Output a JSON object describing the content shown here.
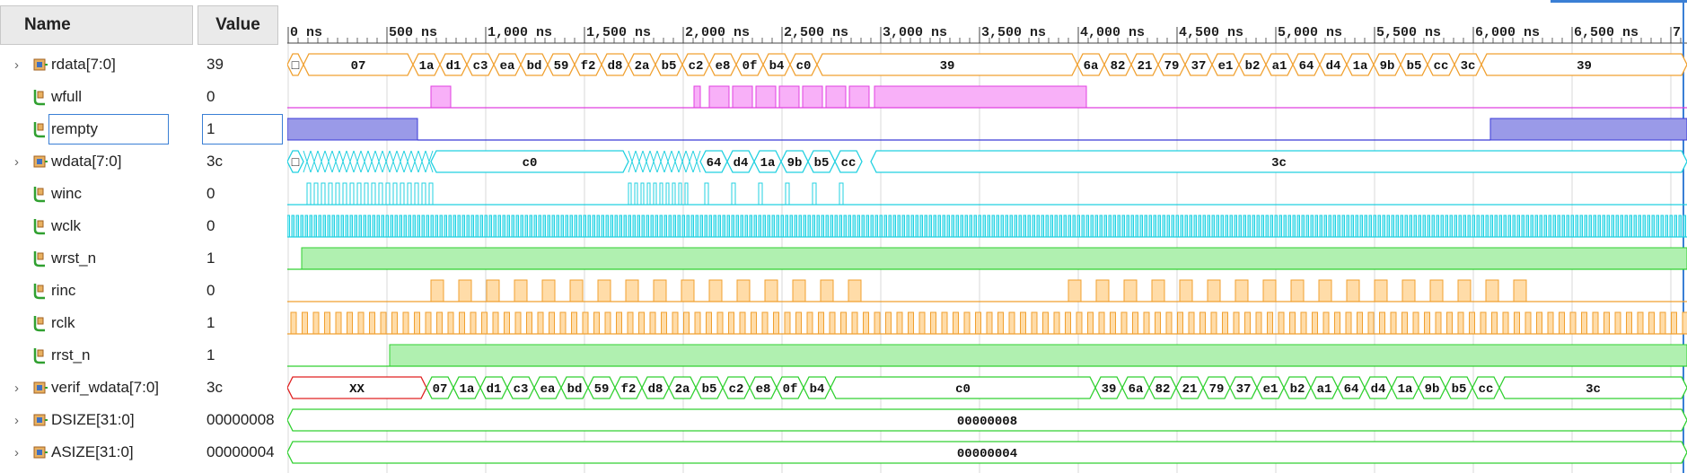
{
  "header": {
    "name_col": "Name",
    "value_col": "Value"
  },
  "timeline": {
    "unit": "ns",
    "ticks": [
      "0 ns",
      "500 ns",
      "1,000 ns",
      "1,500 ns",
      "2,000 ns",
      "2,500 ns",
      "3,000 ns",
      "3,500 ns",
      "4,000 ns",
      "4,500 ns",
      "5,000 ns",
      "5,500 ns",
      "6,000 ns",
      "6,500 ns",
      "7"
    ]
  },
  "signals": [
    {
      "name": "rdata[7:0]",
      "value": "39",
      "kind": "bus",
      "expandable": true,
      "color": "#f0a030"
    },
    {
      "name": "wfull",
      "value": "0",
      "kind": "bit",
      "expandable": false,
      "color": "#e040e0"
    },
    {
      "name": "rempty",
      "value": "1",
      "kind": "bit",
      "expandable": false,
      "color": "#3a3ad8",
      "selected": true
    },
    {
      "name": "wdata[7:0]",
      "value": "3c",
      "kind": "bus",
      "expandable": true,
      "color": "#20d0e0"
    },
    {
      "name": "winc",
      "value": "0",
      "kind": "bit",
      "expandable": false,
      "color": "#20d0e0"
    },
    {
      "name": "wclk",
      "value": "0",
      "kind": "bit",
      "expandable": false,
      "color": "#20d0e0"
    },
    {
      "name": "wrst_n",
      "value": "1",
      "kind": "bit",
      "expandable": false,
      "color": "#30d030"
    },
    {
      "name": "rinc",
      "value": "0",
      "kind": "bit",
      "expandable": false,
      "color": "#f0a030"
    },
    {
      "name": "rclk",
      "value": "1",
      "kind": "bit",
      "expandable": false,
      "color": "#f0a030"
    },
    {
      "name": "rrst_n",
      "value": "1",
      "kind": "bit",
      "expandable": false,
      "color": "#30d030"
    },
    {
      "name": "verif_wdata[7:0]",
      "value": "3c",
      "kind": "bus",
      "expandable": true,
      "color": "#30d030"
    },
    {
      "name": "DSIZE[31:0]",
      "value": "00000008",
      "kind": "bus",
      "expandable": true,
      "color": "#30d030"
    },
    {
      "name": "ASIZE[31:0]",
      "value": "00000004",
      "kind": "bus",
      "expandable": true,
      "color": "#30d030"
    }
  ],
  "waves": {
    "rdata": [
      [
        "□",
        0,
        18
      ],
      [
        "07",
        18,
        140
      ],
      [
        "1a",
        140,
        170
      ],
      [
        "d1",
        170,
        200
      ],
      [
        "c3",
        200,
        230
      ],
      [
        "ea",
        230,
        260
      ],
      [
        "bd",
        260,
        290
      ],
      [
        "59",
        290,
        320
      ],
      [
        "f2",
        320,
        350
      ],
      [
        "d8",
        350,
        380
      ],
      [
        "2a",
        380,
        410
      ],
      [
        "b5",
        410,
        440
      ],
      [
        "c2",
        440,
        470
      ],
      [
        "e8",
        470,
        500
      ],
      [
        "0f",
        500,
        530
      ],
      [
        "b4",
        530,
        560
      ],
      [
        "c0",
        560,
        590
      ],
      [
        "39",
        590,
        880
      ],
      [
        "6a",
        880,
        910
      ],
      [
        "82",
        910,
        940
      ],
      [
        "21",
        940,
        970
      ],
      [
        "79",
        970,
        1000
      ],
      [
        "37",
        1000,
        1030
      ],
      [
        "e1",
        1030,
        1060
      ],
      [
        "b2",
        1060,
        1090
      ],
      [
        "a1",
        1090,
        1120
      ],
      [
        "64",
        1120,
        1150
      ],
      [
        "d4",
        1150,
        1180
      ],
      [
        "1a",
        1180,
        1210
      ],
      [
        "9b",
        1210,
        1240
      ],
      [
        "b5",
        1240,
        1270
      ],
      [
        "cc",
        1270,
        1300
      ],
      [
        "3c",
        1300,
        1330
      ],
      [
        "39",
        1330,
        1559
      ]
    ],
    "wdata": [
      [
        "□",
        0,
        18
      ],
      [
        "c0",
        160,
        380
      ],
      [
        "64",
        460,
        490
      ],
      [
        "d4",
        490,
        520
      ],
      [
        "1a",
        520,
        550
      ],
      [
        "9b",
        550,
        580
      ],
      [
        "b5",
        580,
        610
      ],
      [
        "cc",
        610,
        640
      ],
      [
        "3c",
        650,
        1559
      ]
    ],
    "verif_wdata": [
      [
        "XX",
        0,
        155
      ],
      [
        "07",
        155,
        185
      ],
      [
        "1a",
        185,
        215
      ],
      [
        "d1",
        215,
        245
      ],
      [
        "c3",
        245,
        275
      ],
      [
        "ea",
        275,
        305
      ],
      [
        "bd",
        305,
        335
      ],
      [
        "59",
        335,
        365
      ],
      [
        "f2",
        365,
        395
      ],
      [
        "d8",
        395,
        425
      ],
      [
        "2a",
        425,
        455
      ],
      [
        "b5",
        455,
        485
      ],
      [
        "c2",
        485,
        515
      ],
      [
        "e8",
        515,
        545
      ],
      [
        "0f",
        545,
        575
      ],
      [
        "b4",
        575,
        605
      ],
      [
        "c0",
        605,
        900
      ],
      [
        "39",
        900,
        930
      ],
      [
        "6a",
        930,
        960
      ],
      [
        "82",
        960,
        990
      ],
      [
        "21",
        990,
        1020
      ],
      [
        "79",
        1020,
        1050
      ],
      [
        "37",
        1050,
        1080
      ],
      [
        "e1",
        1080,
        1110
      ],
      [
        "b2",
        1110,
        1140
      ],
      [
        "a1",
        1140,
        1170
      ],
      [
        "64",
        1170,
        1200
      ],
      [
        "d4",
        1200,
        1230
      ],
      [
        "1a",
        1230,
        1260
      ],
      [
        "9b",
        1260,
        1290
      ],
      [
        "b5",
        1290,
        1320
      ],
      [
        "cc",
        1320,
        1350
      ],
      [
        "3c",
        1350,
        1559
      ]
    ],
    "dsize": [
      [
        "00000008",
        0,
        1559
      ]
    ],
    "asize": [
      [
        "00000004",
        0,
        1559
      ]
    ]
  }
}
